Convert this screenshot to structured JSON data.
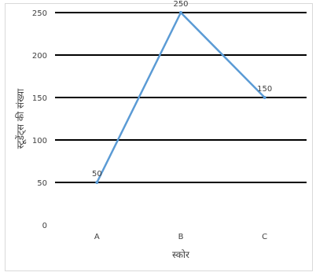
{
  "chart_data": {
    "type": "line",
    "title": "",
    "xlabel": "स्कोर",
    "ylabel": "स्टूडेंट्स की संख्या",
    "categories": [
      "A",
      "B",
      "C"
    ],
    "series": [
      {
        "values": [
          50,
          250,
          150
        ],
        "color": "#5b9bd5"
      }
    ],
    "data_labels": [
      "50",
      "250",
      "150"
    ],
    "ylim": [
      0,
      250
    ],
    "yticks": [
      0,
      50,
      100,
      150,
      200,
      250
    ],
    "ytick_labels": [
      "0",
      "50",
      "100",
      "150",
      "200",
      "250"
    ],
    "grid": true,
    "gridline_color": "#000000",
    "legend": "none"
  }
}
